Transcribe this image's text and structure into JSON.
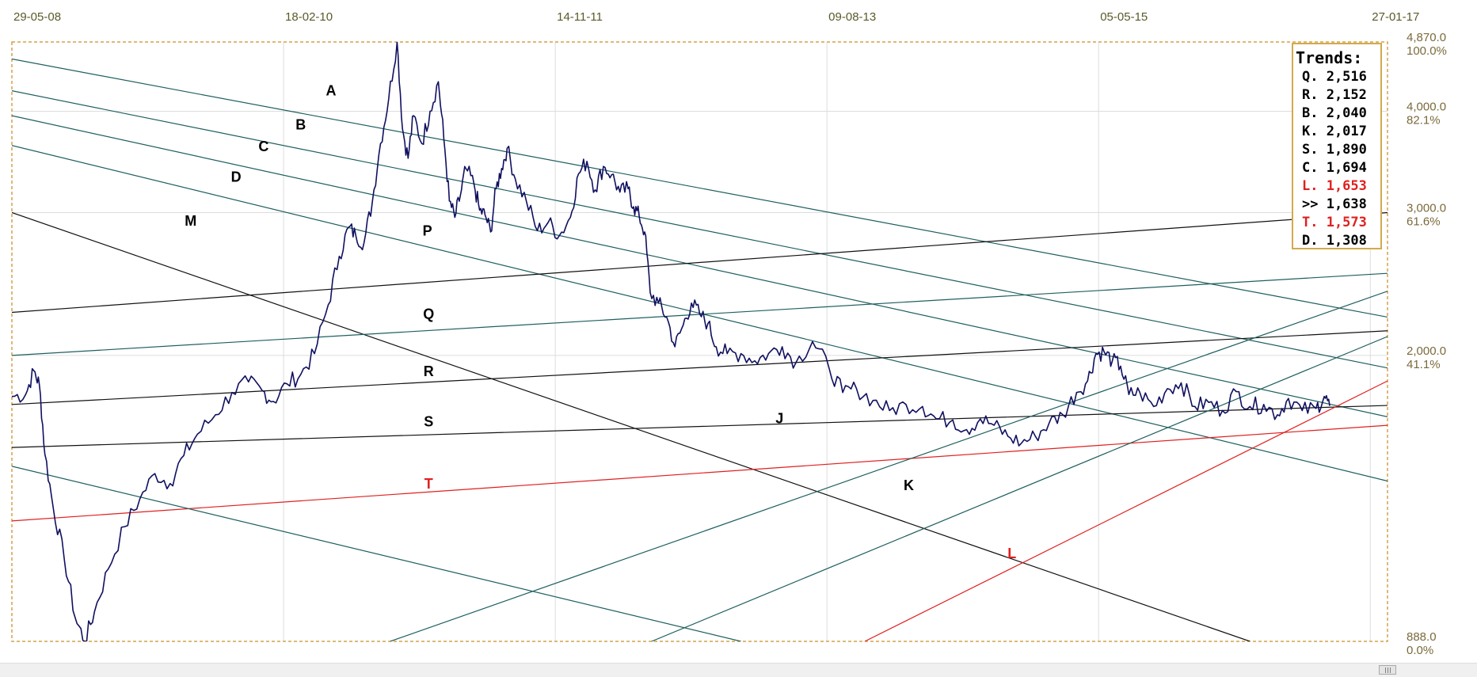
{
  "colors": {
    "price": "#101060",
    "trend_teal": "#1f5f5f",
    "trend_black": "#111111",
    "trend_red": "#e02020",
    "frame": "#d4a24c",
    "grid": "#dcdcdc",
    "date_label": "#5a5a2a",
    "axis_label": "#7a6a3a"
  },
  "chart_data": {
    "type": "line",
    "x_tick_labels": [
      "29-05-08",
      "18-02-10",
      "14-11-11",
      "09-08-13",
      "05-05-15",
      "27-01-17"
    ],
    "y_axis": {
      "scale": "log",
      "ticks": [
        {
          "value": "4,870.0",
          "pct": "100.0%"
        },
        {
          "value": "4,000.0",
          "pct": "82.1%"
        },
        {
          "value": "3,000.0",
          "pct": "61.6%"
        },
        {
          "value": "2,000.0",
          "pct": "41.1%"
        },
        {
          "value": "888.0",
          "pct": "0.0%"
        }
      ],
      "min": 888,
      "max": 4870
    },
    "price_path": [
      [
        0.0,
        1780
      ],
      [
        0.01,
        1790
      ],
      [
        0.016,
        1915
      ],
      [
        0.02,
        1840
      ],
      [
        0.024,
        1510
      ],
      [
        0.03,
        1300
      ],
      [
        0.038,
        1125
      ],
      [
        0.046,
        950
      ],
      [
        0.053,
        888
      ],
      [
        0.06,
        965
      ],
      [
        0.07,
        1090
      ],
      [
        0.082,
        1230
      ],
      [
        0.093,
        1330
      ],
      [
        0.104,
        1430
      ],
      [
        0.115,
        1390
      ],
      [
        0.125,
        1505
      ],
      [
        0.135,
        1600
      ],
      [
        0.148,
        1690
      ],
      [
        0.16,
        1800
      ],
      [
        0.172,
        1855
      ],
      [
        0.182,
        1810
      ],
      [
        0.19,
        1755
      ],
      [
        0.2,
        1845
      ],
      [
        0.21,
        1895
      ],
      [
        0.22,
        2010
      ],
      [
        0.23,
        2310
      ],
      [
        0.238,
        2650
      ],
      [
        0.245,
        2880
      ],
      [
        0.25,
        2810
      ],
      [
        0.256,
        2755
      ],
      [
        0.262,
        3090
      ],
      [
        0.268,
        3650
      ],
      [
        0.274,
        4150
      ],
      [
        0.28,
        4870
      ],
      [
        0.284,
        3800
      ],
      [
        0.288,
        3500
      ],
      [
        0.292,
        3950
      ],
      [
        0.298,
        3650
      ],
      [
        0.304,
        4000
      ],
      [
        0.31,
        4350
      ],
      [
        0.314,
        3700
      ],
      [
        0.318,
        3100
      ],
      [
        0.322,
        2960
      ],
      [
        0.326,
        3150
      ],
      [
        0.33,
        3400
      ],
      [
        0.336,
        3250
      ],
      [
        0.34,
        3020
      ],
      [
        0.344,
        2980
      ],
      [
        0.348,
        2840
      ],
      [
        0.352,
        3210
      ],
      [
        0.356,
        3400
      ],
      [
        0.36,
        3600
      ],
      [
        0.366,
        3300
      ],
      [
        0.374,
        3100
      ],
      [
        0.382,
        2850
      ],
      [
        0.39,
        2920
      ],
      [
        0.398,
        2810
      ],
      [
        0.406,
        2960
      ],
      [
        0.412,
        3350
      ],
      [
        0.418,
        3470
      ],
      [
        0.424,
        3200
      ],
      [
        0.43,
        3420
      ],
      [
        0.436,
        3340
      ],
      [
        0.442,
        3180
      ],
      [
        0.448,
        3210
      ],
      [
        0.452,
        3050
      ],
      [
        0.456,
        2970
      ],
      [
        0.46,
        2840
      ],
      [
        0.464,
        2390
      ],
      [
        0.47,
        2320
      ],
      [
        0.476,
        2230
      ],
      [
        0.482,
        2050
      ],
      [
        0.488,
        2180
      ],
      [
        0.494,
        2320
      ],
      [
        0.5,
        2250
      ],
      [
        0.506,
        2190
      ],
      [
        0.512,
        2050
      ],
      [
        0.52,
        2010
      ],
      [
        0.53,
        2010
      ],
      [
        0.54,
        1970
      ],
      [
        0.55,
        2010
      ],
      [
        0.56,
        2050
      ],
      [
        0.57,
        1960
      ],
      [
        0.582,
        2080
      ],
      [
        0.594,
        1930
      ],
      [
        0.604,
        1800
      ],
      [
        0.614,
        1820
      ],
      [
        0.626,
        1760
      ],
      [
        0.638,
        1710
      ],
      [
        0.65,
        1740
      ],
      [
        0.662,
        1730
      ],
      [
        0.672,
        1670
      ],
      [
        0.684,
        1665
      ],
      [
        0.694,
        1620
      ],
      [
        0.704,
        1670
      ],
      [
        0.714,
        1640
      ],
      [
        0.724,
        1590
      ],
      [
        0.734,
        1560
      ],
      [
        0.744,
        1590
      ],
      [
        0.754,
        1650
      ],
      [
        0.764,
        1690
      ],
      [
        0.774,
        1800
      ],
      [
        0.782,
        1860
      ],
      [
        0.788,
        2010
      ],
      [
        0.794,
        2020
      ],
      [
        0.8,
        1970
      ],
      [
        0.806,
        1940
      ],
      [
        0.812,
        1790
      ],
      [
        0.82,
        1800
      ],
      [
        0.83,
        1730
      ],
      [
        0.84,
        1820
      ],
      [
        0.85,
        1850
      ],
      [
        0.86,
        1730
      ],
      [
        0.87,
        1750
      ],
      [
        0.88,
        1710
      ],
      [
        0.89,
        1805
      ],
      [
        0.9,
        1730
      ],
      [
        0.91,
        1740
      ],
      [
        0.92,
        1690
      ],
      [
        0.928,
        1770
      ],
      [
        0.938,
        1710
      ],
      [
        0.948,
        1720
      ],
      [
        0.954,
        1780
      ],
      [
        0.958,
        1733
      ]
    ],
    "trend_lines": [
      {
        "label": "A",
        "label_color": "black",
        "color": "teal",
        "p1": [
          0,
          4640
        ],
        "p2": [
          1.0,
          2230
        ]
      },
      {
        "label": "B",
        "label_color": "black",
        "color": "teal",
        "p1": [
          0,
          4240
        ],
        "p2": [
          1.0,
          1930
        ]
      },
      {
        "label": "C",
        "label_color": "black",
        "color": "teal",
        "p1": [
          0,
          3950
        ],
        "p2": [
          1.0,
          1680
        ]
      },
      {
        "label": "D",
        "label_color": "black",
        "color": "teal",
        "p1": [
          0,
          3630
        ],
        "p2": [
          1.0,
          1400
        ]
      },
      {
        "label": "M",
        "label_color": "black",
        "color": "black",
        "p1": [
          0,
          3000
        ],
        "p2": [
          0.9,
          888
        ]
      },
      {
        "label": "P",
        "label_color": "black",
        "color": "black",
        "p1": [
          0,
          2260
        ],
        "p2": [
          1.0,
          3000
        ]
      },
      {
        "label": "Q",
        "label_color": "black",
        "color": "teal",
        "p1": [
          0,
          2000
        ],
        "p2": [
          1.0,
          2525
        ]
      },
      {
        "label": "R",
        "label_color": "black",
        "color": "black",
        "p1": [
          0,
          1740
        ],
        "p2": [
          1.0,
          2145
        ]
      },
      {
        "label": "S",
        "label_color": "black",
        "color": "black",
        "p1": [
          0,
          1540
        ],
        "p2": [
          1.0,
          1735
        ]
      },
      {
        "label": "T",
        "label_color": "red",
        "color": "red",
        "p1": [
          0,
          1250
        ],
        "p2": [
          1.0,
          1640
        ]
      },
      {
        "label": "",
        "label_color": "teal",
        "color": "teal",
        "p1": [
          0,
          1460
        ],
        "p2": [
          0.53,
          888
        ]
      },
      {
        "label": "J",
        "label_color": "black",
        "color": "teal",
        "p1": [
          0.275,
          888
        ],
        "p2": [
          1.0,
          2400
        ]
      },
      {
        "label": "K",
        "label_color": "black",
        "color": "teal",
        "p1": [
          0.465,
          888
        ],
        "p2": [
          1.0,
          2110
        ]
      },
      {
        "label": "L",
        "label_color": "red",
        "color": "red",
        "p1": [
          0.62,
          888
        ],
        "p2": [
          1.0,
          1860
        ]
      }
    ],
    "line_labels": [
      {
        "text": "A",
        "color": "black",
        "at": [
          0.232,
          4185
        ]
      },
      {
        "text": "B",
        "color": "black",
        "at": [
          0.21,
          3800
        ]
      },
      {
        "text": "C",
        "color": "black",
        "at": [
          0.183,
          3570
        ]
      },
      {
        "text": "D",
        "color": "black",
        "at": [
          0.163,
          3275
        ]
      },
      {
        "text": "M",
        "color": "black",
        "at": [
          0.13,
          2890
        ]
      },
      {
        "text": "P",
        "color": "black",
        "at": [
          0.302,
          2810
        ]
      },
      {
        "text": "Q",
        "color": "black",
        "at": [
          0.303,
          2220
        ]
      },
      {
        "text": "R",
        "color": "black",
        "at": [
          0.303,
          1885
        ]
      },
      {
        "text": "S",
        "color": "black",
        "at": [
          0.303,
          1635
        ]
      },
      {
        "text": "T",
        "color": "red",
        "at": [
          0.303,
          1370
        ]
      },
      {
        "text": "J",
        "color": "black",
        "at": [
          0.558,
          1650
        ]
      },
      {
        "text": "K",
        "color": "black",
        "at": [
          0.652,
          1365
        ]
      },
      {
        "text": "L",
        "color": "red",
        "at": [
          0.727,
          1125
        ]
      }
    ]
  },
  "legend": {
    "title": "Trends:",
    "items": [
      {
        "text": "Q. 2,516",
        "color": "#000000"
      },
      {
        "text": "R. 2,152",
        "color": "#000000"
      },
      {
        "text": "B. 2,040",
        "color": "#000000"
      },
      {
        "text": "K. 2,017",
        "color": "#000000"
      },
      {
        "text": "S. 1,890",
        "color": "#000000"
      },
      {
        "text": "C. 1,694",
        "color": "#000000"
      },
      {
        "text": "L. 1,653",
        "color": "#e02020"
      },
      {
        "text": ">> 1,638",
        "color": "#000000"
      },
      {
        "text": "T. 1,573",
        "color": "#e02020"
      },
      {
        "text": "D. 1,308",
        "color": "#000000"
      }
    ]
  }
}
